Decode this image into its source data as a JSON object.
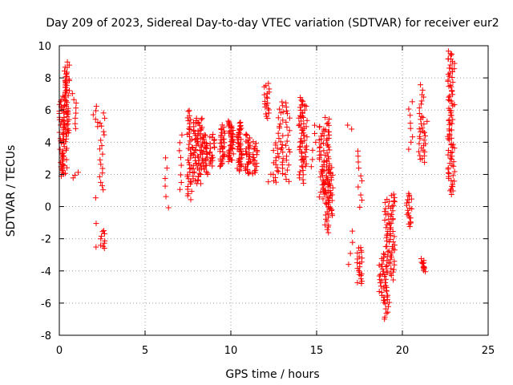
{
  "chart_data": {
    "type": "scatter",
    "title": "Day 209 of 2023, Sidereal Day-to-day VTEC variation (SDTVAR) for receiver eur2",
    "xlabel": "GPS time / hours",
    "ylabel": "SDTVAR / TECUs",
    "xlim": [
      0,
      25
    ],
    "ylim": [
      -8,
      10
    ],
    "xticks": [
      0,
      5,
      10,
      15,
      20,
      25
    ],
    "yticks": [
      -8,
      -6,
      -4,
      -2,
      0,
      2,
      4,
      6,
      8,
      10
    ],
    "grid": true,
    "marker": "+",
    "color": "#ff0000",
    "clusters": [
      {
        "x": 0.15,
        "ymin": 1.9,
        "ymax": 6.8,
        "n": 38
      },
      {
        "x": 0.3,
        "ymin": 2.0,
        "ymax": 8.2,
        "n": 45
      },
      {
        "x": 0.45,
        "ymin": 4.5,
        "ymax": 9.0,
        "n": 35
      },
      {
        "x": 0.9,
        "ymin": 4.8,
        "ymax": 7.0,
        "n": 8
      },
      {
        "x": 0.95,
        "ymin": 1.8,
        "ymax": 2.2,
        "n": 3
      },
      {
        "x": 2.1,
        "ymin": 5.0,
        "ymax": 6.2,
        "n": 6
      },
      {
        "x": 2.2,
        "ymin": -2.5,
        "ymax": 0.5,
        "n": 3
      },
      {
        "x": 2.5,
        "ymin": 1.0,
        "ymax": 5.8,
        "n": 18
      },
      {
        "x": 2.5,
        "ymin": -2.6,
        "ymax": -1.5,
        "n": 10
      },
      {
        "x": 6.3,
        "ymin": 0.0,
        "ymax": 3.0,
        "n": 6
      },
      {
        "x": 7.1,
        "ymin": 1.0,
        "ymax": 4.5,
        "n": 8
      },
      {
        "x": 7.6,
        "ymin": 0.5,
        "ymax": 6.0,
        "n": 40
      },
      {
        "x": 7.9,
        "ymin": 1.5,
        "ymax": 5.5,
        "n": 30
      },
      {
        "x": 8.2,
        "ymin": 1.5,
        "ymax": 5.5,
        "n": 40
      },
      {
        "x": 8.5,
        "ymin": 2.0,
        "ymax": 4.5,
        "n": 30
      },
      {
        "x": 8.9,
        "ymin": 2.5,
        "ymax": 4.5,
        "n": 20
      },
      {
        "x": 9.5,
        "ymin": 2.5,
        "ymax": 5.0,
        "n": 35
      },
      {
        "x": 10.0,
        "ymin": 2.8,
        "ymax": 5.3,
        "n": 45
      },
      {
        "x": 10.5,
        "ymin": 2.2,
        "ymax": 5.2,
        "n": 45
      },
      {
        "x": 11.0,
        "ymin": 2.0,
        "ymax": 4.5,
        "n": 35
      },
      {
        "x": 11.4,
        "ymin": 2.0,
        "ymax": 4.0,
        "n": 20
      },
      {
        "x": 12.1,
        "ymin": 5.5,
        "ymax": 7.6,
        "n": 20
      },
      {
        "x": 12.2,
        "ymin": 1.5,
        "ymax": 2.0,
        "n": 2
      },
      {
        "x": 12.6,
        "ymin": 1.5,
        "ymax": 4.0,
        "n": 15
      },
      {
        "x": 12.9,
        "ymin": 2.0,
        "ymax": 6.5,
        "n": 25
      },
      {
        "x": 13.3,
        "ymin": 1.5,
        "ymax": 6.5,
        "n": 20
      },
      {
        "x": 14.1,
        "ymin": 1.5,
        "ymax": 6.8,
        "n": 40
      },
      {
        "x": 14.3,
        "ymin": 2.5,
        "ymax": 6.5,
        "n": 25
      },
      {
        "x": 14.8,
        "ymin": 2.5,
        "ymax": 5.0,
        "n": 6
      },
      {
        "x": 15.3,
        "ymin": 0.5,
        "ymax": 5.0,
        "n": 40
      },
      {
        "x": 15.6,
        "ymin": -1.6,
        "ymax": 5.5,
        "n": 55
      },
      {
        "x": 15.8,
        "ymin": -0.5,
        "ymax": 2.5,
        "n": 30
      },
      {
        "x": 16.9,
        "ymin": 4.8,
        "ymax": 5.0,
        "n": 2
      },
      {
        "x": 17.0,
        "ymin": -3.6,
        "ymax": -1.5,
        "n": 4
      },
      {
        "x": 17.5,
        "ymin": -4.8,
        "ymax": -2.5,
        "n": 22
      },
      {
        "x": 17.5,
        "ymin": 0.0,
        "ymax": 3.5,
        "n": 10
      },
      {
        "x": 18.8,
        "ymin": -6.0,
        "ymax": -3.0,
        "n": 25
      },
      {
        "x": 19.1,
        "ymin": -7.0,
        "ymax": 0.5,
        "n": 50
      },
      {
        "x": 19.4,
        "ymin": -4.5,
        "ymax": 0.8,
        "n": 40
      },
      {
        "x": 20.4,
        "ymin": -1.2,
        "ymax": 0.8,
        "n": 20
      },
      {
        "x": 20.5,
        "ymin": 3.5,
        "ymax": 6.5,
        "n": 8
      },
      {
        "x": 21.1,
        "ymin": 3.0,
        "ymax": 7.5,
        "n": 20
      },
      {
        "x": 21.2,
        "ymin": -4.0,
        "ymax": -3.3,
        "n": 15
      },
      {
        "x": 21.3,
        "ymin": 2.8,
        "ymax": 5.5,
        "n": 15
      },
      {
        "x": 22.8,
        "ymin": 0.8,
        "ymax": 9.7,
        "n": 60
      },
      {
        "x": 22.9,
        "ymin": 1.0,
        "ymax": 9.5,
        "n": 30
      }
    ]
  }
}
